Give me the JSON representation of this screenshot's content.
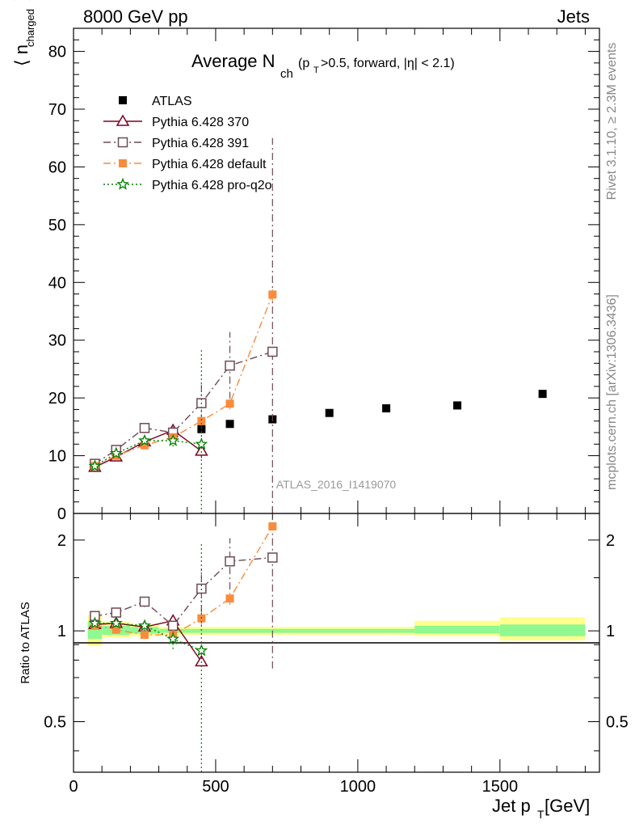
{
  "header": {
    "left": "8000 GeV pp",
    "right": "Jets"
  },
  "side_labels": {
    "rivet": "Rivet 3.1.10, ≥ 2.3M events",
    "mcplots": "mcplots.cern.ch [arXiv:1306.3436]"
  },
  "watermark": "ATLAS_2016_I1419070",
  "chart_data": [
    {
      "type": "scatter",
      "panel": "main",
      "title": {
        "main": "Average N",
        "sub": "ch",
        "cond_a": "(p",
        "cond_sub": "T",
        "cond_b": ">0.5, forward, |η| < 2.1)"
      },
      "ylabel": {
        "open": "⟨ n",
        "sub": "charged",
        "close": "⟩"
      },
      "ylim": [
        0,
        84
      ],
      "yticks": [
        0,
        10,
        20,
        30,
        40,
        50,
        60,
        70,
        80
      ],
      "xlim": [
        0,
        1850
      ],
      "legend_position": "top-left",
      "series": [
        {
          "name": "ATLAS",
          "color": "#000000",
          "marker": "filled-square",
          "line": "none",
          "x": [
            450,
            550,
            700,
            900,
            1100,
            1350,
            1650
          ],
          "y": [
            14.6,
            15.5,
            16.3,
            17.4,
            18.2,
            18.7,
            20.7
          ]
        },
        {
          "name": "Pythia 6.428 370",
          "color": "#800020",
          "marker": "open-triangle",
          "line": "solid",
          "x": [
            75,
            150,
            250,
            350,
            450
          ],
          "y": [
            8.0,
            9.8,
            12.4,
            14.4,
            10.8
          ],
          "err": [
            0.3,
            0.3,
            0.4,
            0.8,
            1.2
          ]
        },
        {
          "name": "Pythia 6.428 391",
          "color": "#6e4a55",
          "marker": "open-square",
          "line": "dashdot",
          "x": [
            75,
            150,
            250,
            350,
            450,
            550,
            700
          ],
          "y": [
            8.6,
            11.0,
            14.8,
            14.0,
            19.1,
            25.6,
            28.0
          ],
          "err": [
            0.4,
            0.4,
            0.6,
            1.0,
            3.2,
            5.8,
            37.0
          ]
        },
        {
          "name": "Pythia 6.428 default",
          "color": "#f98b3c",
          "marker": "filled-square",
          "line": "dashdot",
          "x": [
            75,
            150,
            250,
            350,
            450,
            550,
            700
          ],
          "y": [
            8.2,
            10.0,
            11.8,
            13.2,
            16.0,
            19.0,
            37.9
          ],
          "err": [
            0.3,
            0.3,
            0.5,
            0.7,
            0.8,
            1.0,
            1.2
          ]
        },
        {
          "name": "Pythia 6.428 pro-q2o",
          "color": "#008000",
          "marker": "open-star",
          "line": "dotted",
          "x": [
            75,
            150,
            250,
            350,
            450
          ],
          "y": [
            8.2,
            10.4,
            12.6,
            12.6,
            12.0
          ],
          "err": [
            0.3,
            0.4,
            0.6,
            1.0,
            16.6
          ]
        }
      ]
    },
    {
      "type": "scatter",
      "panel": "ratio",
      "ylabel": "Ratio to ATLAS",
      "ylog": true,
      "ylim": [
        0.34,
        2.45
      ],
      "yticks": [
        0.5,
        1,
        2
      ],
      "ytick_labels": [
        "0.5",
        "1",
        "2"
      ],
      "xlim": [
        0,
        1850
      ],
      "xticks": [
        0,
        500,
        1000,
        1500
      ],
      "xtick_labels": [
        "0",
        "500",
        "1000",
        "1500"
      ],
      "xlabel": {
        "a": "Jet p",
        "sub": "T",
        "b": " [GeV]"
      },
      "bands": [
        {
          "x0": 50,
          "x1": 100,
          "green": [
            0.94,
            1.07
          ],
          "yellow": [
            0.89,
            1.13
          ]
        },
        {
          "x0": 100,
          "x1": 200,
          "green": [
            0.97,
            1.04
          ],
          "yellow": [
            0.95,
            1.07
          ]
        },
        {
          "x0": 200,
          "x1": 300,
          "green": [
            0.98,
            1.03
          ],
          "yellow": [
            0.96,
            1.05
          ]
        },
        {
          "x0": 300,
          "x1": 1200,
          "green": [
            0.985,
            1.015
          ],
          "yellow": [
            0.97,
            1.03
          ]
        },
        {
          "x0": 1200,
          "x1": 1500,
          "green": [
            0.98,
            1.04
          ],
          "yellow": [
            0.96,
            1.08
          ]
        },
        {
          "x0": 1500,
          "x1": 1800,
          "green": [
            0.96,
            1.05
          ],
          "yellow": [
            0.93,
            1.11
          ]
        }
      ],
      "series": [
        {
          "name": "Pythia 6.428 370",
          "color": "#800020",
          "marker": "open-triangle",
          "line": "solid",
          "x": [
            75,
            150,
            250,
            350,
            450
          ],
          "y": [
            1.05,
            1.06,
            1.03,
            1.08,
            0.79
          ],
          "err": [
            0.03,
            0.02,
            0.03,
            0.05,
            0.03
          ]
        },
        {
          "name": "Pythia 6.428 391",
          "color": "#6e4a55",
          "marker": "open-square",
          "line": "dashdot",
          "x": [
            75,
            150,
            250,
            350,
            450,
            550,
            700
          ],
          "y": [
            1.12,
            1.15,
            1.25,
            1.04,
            1.38,
            1.7,
            1.75
          ],
          "err": [
            0.02,
            0.02,
            0.05,
            0.06,
            0.23,
            0.33,
            1.0
          ]
        },
        {
          "name": "Pythia 6.428 default",
          "color": "#f98b3c",
          "marker": "filled-square",
          "line": "dashdot",
          "x": [
            75,
            150,
            250,
            350,
            450,
            550,
            700
          ],
          "y": [
            1.04,
            1.01,
            0.97,
            0.97,
            1.1,
            1.28,
            2.22
          ],
          "err": [
            0.02,
            0.02,
            0.03,
            0.05,
            0.06,
            0.06,
            0.07
          ]
        },
        {
          "name": "Pythia 6.428 pro-q2o",
          "color": "#008000",
          "marker": "open-star",
          "line": "dotted",
          "x": [
            75,
            150,
            250,
            350,
            450
          ],
          "y": [
            1.06,
            1.06,
            1.04,
            0.94,
            0.86
          ],
          "err": [
            0.02,
            0.03,
            0.04,
            0.07,
            1.1
          ]
        }
      ]
    }
  ]
}
